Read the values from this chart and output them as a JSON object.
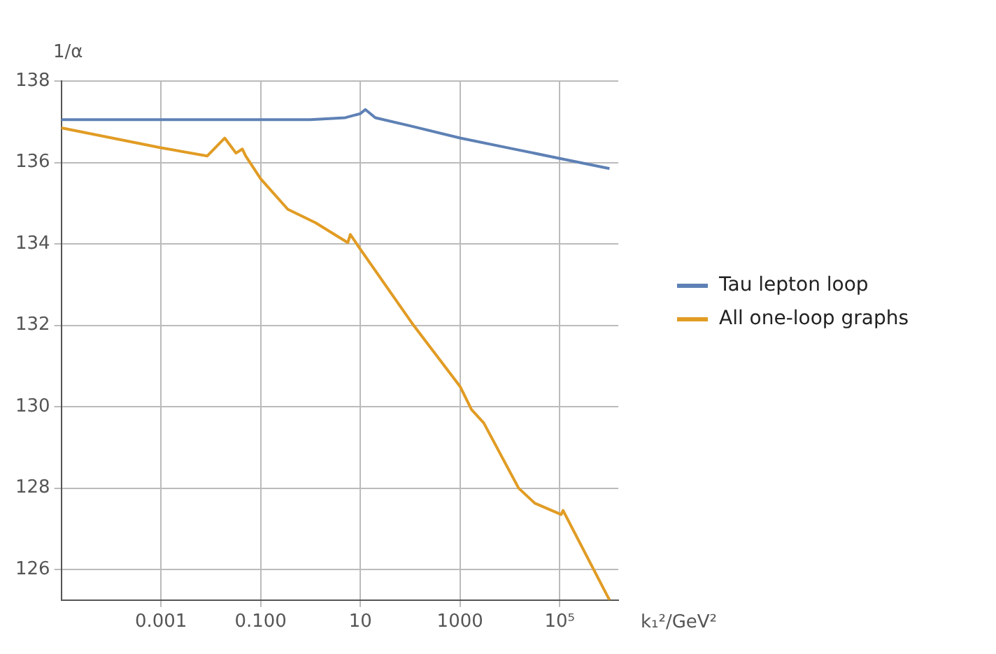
{
  "chart_data": {
    "type": "line",
    "ylabel": "1/α",
    "xlabel": "k₁²/GeV²",
    "log": "x",
    "grid": true,
    "legend": "right",
    "marker": "none",
    "line_style": "solid",
    "xlim": [
      1e-05,
      1500000
    ],
    "xticks": [
      0.001,
      {
        "value": 0.1,
        "label": "0.100"
      },
      10,
      1000,
      {
        "value": 100000,
        "label": "10⁵"
      }
    ],
    "ylim": [
      125.25,
      138
    ],
    "yticks": [
      126,
      128,
      130,
      132,
      134,
      136,
      138
    ],
    "series": [
      {
        "name": "Tau lepton loop",
        "color": "#5e81b5",
        "x": [
          1e-05,
          0.001,
          0.1,
          1,
          5,
          10,
          12.6,
          20,
          100,
          1000,
          10000,
          100000,
          1000000
        ],
        "values": [
          137.05,
          137.05,
          137.05,
          137.05,
          137.1,
          137.2,
          137.3,
          137.1,
          136.9,
          136.6,
          136.35,
          136.1,
          135.85
        ]
      },
      {
        "name": "All one-loop graphs",
        "color": "#e19c24",
        "x": [
          1e-05,
          0.001,
          0.0085,
          0.019,
          0.032,
          0.043,
          0.05,
          0.1,
          0.35,
          1.26,
          5.6,
          6.3,
          10,
          117,
          1000,
          1700,
          3000,
          15000,
          31600,
          107000,
          117000,
          1000000
        ],
        "values": [
          136.85,
          136.36,
          136.16,
          136.6,
          136.23,
          136.33,
          136.16,
          135.6,
          134.85,
          134.52,
          134.03,
          134.23,
          133.87,
          132,
          130.5,
          129.93,
          129.6,
          128,
          127.63,
          127.35,
          127.45,
          125.25
        ]
      }
    ]
  }
}
